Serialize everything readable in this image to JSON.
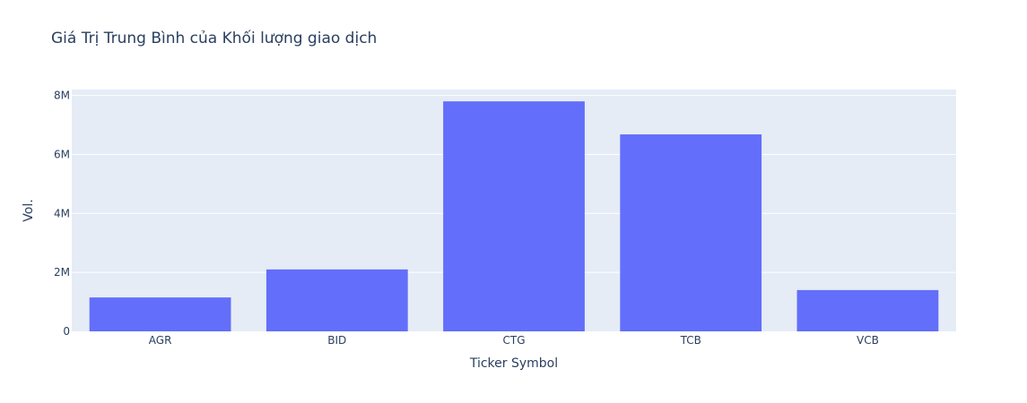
{
  "chart_data": {
    "type": "bar",
    "title": "Giá Trị Trung Bình của Khối lượng giao dịch",
    "xlabel": "Ticker Symbol",
    "ylabel": "Vol.",
    "categories": [
      "AGR",
      "BID",
      "CTG",
      "TCB",
      "VCB"
    ],
    "values": [
      1150000,
      2100000,
      7800000,
      6680000,
      1400000
    ],
    "ylim": [
      0,
      8200000
    ],
    "yticks": [
      0,
      2000000,
      4000000,
      6000000,
      8000000
    ],
    "ytick_labels": [
      "0",
      "2M",
      "4M",
      "6M",
      "8M"
    ],
    "grid": true,
    "legend": false,
    "colors": {
      "bar": "#636efa",
      "plot_background": "#e5ecf6",
      "grid": "#ffffff",
      "text": "#2a3f5f"
    }
  }
}
